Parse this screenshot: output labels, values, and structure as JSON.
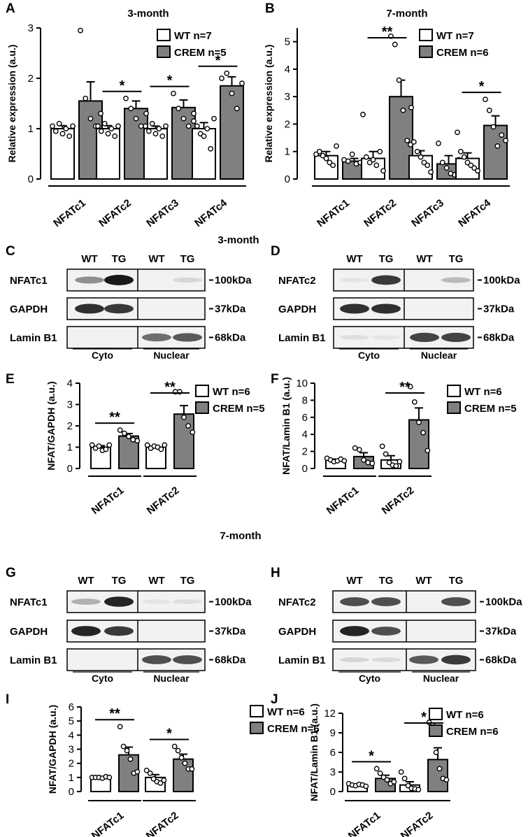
{
  "colors": {
    "wt_fill": "#ffffff",
    "crem_fill": "#808080",
    "line": "#000000"
  },
  "section_titles": {
    "three_month": "3-month",
    "seven_month": "7-month"
  },
  "chart_data": [
    {
      "panel": "A",
      "type": "bar",
      "title": "3-month",
      "ylabel": "Relative expression (a.u.)",
      "ylim": [
        0,
        3
      ],
      "yticks": [
        0,
        1,
        2,
        3
      ],
      "categories": [
        "NFATc1",
        "NFATc2",
        "NFATc3",
        "NFATc4"
      ],
      "legend": [
        "WT n=7",
        "CREM n=5"
      ],
      "series": [
        {
          "name": "WT n=7",
          "values": [
            1.0,
            1.0,
            1.0,
            1.0
          ],
          "sem": [
            0.06,
            0.06,
            0.05,
            0.12
          ],
          "points": [
            [
              1.05,
              0.95,
              1.1,
              0.9,
              1.0,
              0.85,
              1.05
            ],
            [
              1.05,
              0.95,
              1.1,
              0.9,
              1.0,
              0.85,
              1.05
            ],
            [
              1.05,
              0.95,
              1.1,
              0.9,
              1.0,
              0.85,
              1.05
            ],
            [
              1.15,
              1.05,
              0.9,
              0.85,
              1.0,
              0.6,
              1.2
            ]
          ]
        },
        {
          "name": "CREM n=5",
          "values": [
            1.55,
            1.4,
            1.42,
            1.85
          ],
          "sem": [
            0.38,
            0.15,
            0.15,
            0.18
          ],
          "points": [
            [
              2.95,
              1.6,
              1.2,
              1.05,
              1.3
            ],
            [
              1.6,
              1.4,
              1.2,
              1.05,
              1.3
            ],
            [
              1.7,
              1.4,
              1.2,
              1.05,
              1.3
            ],
            [
              2.0,
              2.1,
              1.7,
              1.4,
              1.9
            ]
          ]
        }
      ],
      "significance": [
        {
          "category": 1,
          "label": "*"
        },
        {
          "category": 2,
          "label": "*"
        },
        {
          "category": 3,
          "label": "*"
        }
      ]
    },
    {
      "panel": "B",
      "type": "bar",
      "title": "7-month",
      "ylabel": "Relative expression (a.u.)",
      "ylim": [
        0,
        5.5
      ],
      "yticks": [
        0,
        1,
        2,
        3,
        4,
        5
      ],
      "categories": [
        "NFATc1",
        "NFATc2",
        "NFATc3",
        "NFATc4"
      ],
      "legend": [
        "WT n=7",
        "CREM n=6"
      ],
      "series": [
        {
          "name": "WT n=7",
          "values": [
            0.85,
            0.75,
            0.85,
            0.75
          ],
          "sem": [
            0.15,
            0.25,
            0.18,
            0.2
          ],
          "points": [
            [
              0.9,
              1.0,
              0.85,
              0.75,
              0.6,
              0.5,
              1.2
            ],
            [
              2.35,
              0.8,
              0.6,
              0.7,
              0.5,
              1.0,
              0.3
            ],
            [
              1.25,
              1.35,
              1.0,
              0.8,
              0.6,
              0.5,
              0.25
            ],
            [
              1.7,
              1.0,
              0.8,
              0.6,
              0.5,
              0.4,
              0.3
            ]
          ]
        },
        {
          "name": "CREM n=6",
          "values": [
            0.65,
            3.0,
            0.55,
            1.95
          ],
          "sem": [
            0.1,
            0.6,
            0.3,
            0.35
          ],
          "points": [
            [
              0.7,
              0.65,
              0.9,
              0.55,
              0.6,
              0.5
            ],
            [
              5.2,
              4.9,
              3.6,
              2.5,
              1.4,
              2.6
            ],
            [
              1.3,
              0.6,
              0.4,
              0.2,
              0.15,
              0.7
            ],
            [
              2.9,
              2.5,
              1.9,
              1.2,
              1.6,
              1.4
            ]
          ]
        }
      ],
      "significance": [
        {
          "category": 1,
          "label": "**"
        },
        {
          "category": 3,
          "label": "*"
        }
      ]
    },
    {
      "panel": "E",
      "type": "bar",
      "ylabel": "NFAT/GAPDH (a.u.)",
      "ylim": [
        0,
        4
      ],
      "yticks": [
        0,
        1,
        2,
        3,
        4
      ],
      "categories": [
        "NFATc1",
        "NFATc2"
      ],
      "legend": [
        "WT n=6",
        "CREM n=5"
      ],
      "series": [
        {
          "name": "WT n=6",
          "values": [
            1.0,
            1.0
          ],
          "sem": [
            0.07,
            0.05
          ],
          "points": [
            [
              1.1,
              0.95,
              1.05,
              0.85,
              0.9,
              1.1
            ],
            [
              1.1,
              0.95,
              1.05,
              1.0,
              0.9,
              1.1
            ]
          ]
        },
        {
          "name": "CREM n=5",
          "values": [
            1.52,
            2.55
          ],
          "sem": [
            0.12,
            0.4
          ],
          "points": [
            [
              1.8,
              1.65,
              1.5,
              1.35,
              1.3
            ],
            [
              3.6,
              3.6,
              2.4,
              2.0,
              1.7
            ]
          ]
        }
      ],
      "significance": [
        {
          "category": 0,
          "label": "**"
        },
        {
          "category": 1,
          "label": "**"
        }
      ]
    },
    {
      "panel": "F",
      "type": "bar",
      "ylabel": "NFAT/Lamin B1 (a.u.)",
      "ylim": [
        0,
        10
      ],
      "yticks": [
        0,
        2,
        4,
        6,
        8,
        10
      ],
      "categories": [
        "NFATc1",
        "NFATc2"
      ],
      "legend": [
        "WT n=6",
        "CREM n=5"
      ],
      "series": [
        {
          "name": "WT n=6",
          "values": [
            1.0,
            1.0
          ],
          "sem": [
            0.1,
            0.5
          ],
          "points": [
            [
              1.2,
              1.0,
              0.8,
              0.9,
              1.1,
              0.9
            ],
            [
              2.6,
              1.7,
              0.7,
              0.4,
              0.3,
              0.8
            ]
          ]
        },
        {
          "name": "CREM n=5",
          "values": [
            1.4,
            5.7
          ],
          "sem": [
            0.45,
            1.4
          ],
          "points": [
            [
              2.4,
              2.2,
              1.0,
              0.7,
              0.6
            ],
            [
              9.6,
              7.8,
              5.4,
              4.2,
              2.1
            ]
          ]
        }
      ],
      "significance": [
        {
          "category": 1,
          "label": "**"
        }
      ]
    },
    {
      "panel": "I",
      "type": "bar",
      "ylabel": "NFAT/GAPDH (a.u.)",
      "ylim": [
        0,
        6
      ],
      "yticks": [
        0,
        1,
        2,
        3,
        4,
        5,
        6
      ],
      "categories": [
        "NFATc1",
        "NFATc2"
      ],
      "legend": [
        "WT n=6",
        "CREM n=6"
      ],
      "series": [
        {
          "name": "WT n=6",
          "values": [
            1.0,
            1.0
          ],
          "sem": [
            0.03,
            0.2
          ],
          "points": [
            [
              1.0,
              1.0,
              1.0,
              0.95,
              1.05,
              1.0
            ],
            [
              1.5,
              1.3,
              0.9,
              0.7,
              0.6,
              0.8
            ]
          ]
        },
        {
          "name": "CREM n=6",
          "values": [
            2.6,
            2.3
          ],
          "sem": [
            0.55,
            0.35
          ],
          "points": [
            [
              4.6,
              3.2,
              2.9,
              2.3,
              1.3,
              1.4
            ],
            [
              3.2,
              2.9,
              2.4,
              2.0,
              1.6,
              1.6
            ]
          ]
        }
      ],
      "significance": [
        {
          "category": 0,
          "label": "**"
        },
        {
          "category": 1,
          "label": "*"
        }
      ]
    },
    {
      "panel": "J",
      "type": "bar",
      "ylabel": "NFAT/Lamin B1 (a.u.)",
      "ylim": [
        0,
        12
      ],
      "yticks": [
        0,
        3,
        6,
        9,
        12
      ],
      "categories": [
        "NFATc1",
        "NFATc2"
      ],
      "legend": [
        "WT n=6",
        "CREM n=6"
      ],
      "series": [
        {
          "name": "WT n=6",
          "values": [
            1.0,
            1.0
          ],
          "sem": [
            0.08,
            0.5
          ],
          "points": [
            [
              1.2,
              1.0,
              0.9,
              1.1,
              1.0,
              0.8
            ],
            [
              3.0,
              2.0,
              0.9,
              0.5,
              0.4,
              0.3
            ]
          ]
        },
        {
          "name": "CREM n=6",
          "values": [
            2.0,
            4.9
          ],
          "sem": [
            0.5,
            1.8
          ],
          "points": [
            [
              3.5,
              2.8,
              2.2,
              1.8,
              1.2,
              1.5
            ],
            [
              10.6,
              10.2,
              6.0,
              3.5,
              2.0,
              1.8
            ]
          ]
        }
      ],
      "significance": [
        {
          "category": 0,
          "label": "*"
        },
        {
          "category": 1,
          "label": "*"
        }
      ]
    }
  ],
  "blots": [
    {
      "panel": "C",
      "columns": [
        "WT",
        "TG",
        "WT",
        "TG"
      ],
      "rows": [
        {
          "label": "NFATc1",
          "marker": "100kDa",
          "bands": [
            0.45,
            1.0,
            0.0,
            0.12
          ]
        },
        {
          "label": "GAPDH",
          "marker": "37kDa",
          "bands": [
            0.9,
            0.85,
            0.0,
            0.0
          ]
        },
        {
          "label": "Lamin B1",
          "marker": "68kDa",
          "bands": [
            0.0,
            0.0,
            0.6,
            0.7
          ]
        }
      ],
      "fractions": [
        "Cyto",
        "Nuclear"
      ]
    },
    {
      "panel": "D",
      "columns": [
        "WT",
        "TG",
        "WT",
        "TG"
      ],
      "rows": [
        {
          "label": "NFATc2",
          "marker": "100kDa",
          "bands": [
            0.05,
            0.85,
            0.0,
            0.25
          ]
        },
        {
          "label": "GAPDH",
          "marker": "37kDa",
          "bands": [
            0.9,
            0.9,
            0.0,
            0.0
          ]
        },
        {
          "label": "Lamin B1",
          "marker": "68kDa",
          "bands": [
            0.08,
            0.05,
            0.8,
            0.8
          ]
        }
      ],
      "fractions": [
        "Cyto",
        "Nuclear"
      ]
    },
    {
      "panel": "G",
      "columns": [
        "WT",
        "TG",
        "WT",
        "TG"
      ],
      "rows": [
        {
          "label": "NFATc1",
          "marker": "100kDa",
          "bands": [
            0.3,
            0.95,
            0.05,
            0.08
          ]
        },
        {
          "label": "GAPDH",
          "marker": "37kDa",
          "bands": [
            0.95,
            0.85,
            0.0,
            0.0
          ]
        },
        {
          "label": "Lamin B1",
          "marker": "68kDa",
          "bands": [
            0.0,
            0.0,
            0.75,
            0.75
          ]
        }
      ],
      "fractions": [
        "Cyto",
        "Nuclear"
      ]
    },
    {
      "panel": "H",
      "columns": [
        "WT",
        "TG",
        "WT",
        "TG"
      ],
      "rows": [
        {
          "label": "NFATc2",
          "marker": "100kDa",
          "bands": [
            0.75,
            0.75,
            0.0,
            0.75
          ]
        },
        {
          "label": "GAPDH",
          "marker": "37kDa",
          "bands": [
            0.95,
            0.75,
            0.0,
            0.0
          ]
        },
        {
          "label": "Lamin B1",
          "marker": "68kDa",
          "bands": [
            0.12,
            0.1,
            0.7,
            0.85
          ]
        }
      ],
      "fractions": [
        "Cyto",
        "Nuclear"
      ]
    }
  ]
}
